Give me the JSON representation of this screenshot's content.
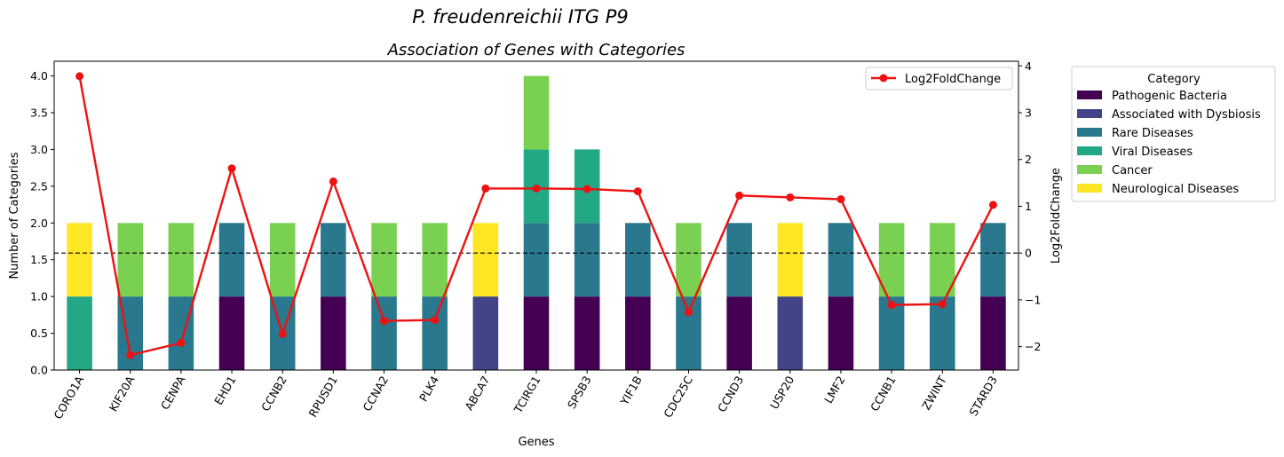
{
  "figure": {
    "suptitle": "P.  freudenreichii ITG P9"
  },
  "chart_data": {
    "type": "bar",
    "stacked": true,
    "title": "Association of Genes with Categories",
    "xlabel": "Genes",
    "ylabel": "Number of Categories",
    "y2label": "Log2FoldChange",
    "ylim": [
      0,
      4.2
    ],
    "y2lim": [
      -2.5,
      4.1
    ],
    "yticks": [
      "0.0",
      "0.5",
      "1.0",
      "1.5",
      "2.0",
      "2.5",
      "3.0",
      "3.5",
      "4.0"
    ],
    "y2ticks": [
      "−2",
      "−1",
      "0",
      "1",
      "2",
      "3",
      "4"
    ],
    "reference_line": {
      "axis": "y2",
      "value": 0,
      "style": "dashed"
    },
    "categories": [
      "CORO1A",
      "KIF20A",
      "CENPA",
      "EHD1",
      "CCNB2",
      "RPUSD1",
      "CCNA2",
      "PLK4",
      "ABCA7",
      "TCIRG1",
      "SPSB3",
      "YIF1B",
      "CDC25C",
      "CCND3",
      "USP20",
      "LMF2",
      "CCNB1",
      "ZWINT",
      "STARD3"
    ],
    "series": [
      {
        "name": "Pathogenic Bacteria",
        "color": "#440154",
        "values": [
          0,
          0,
          0,
          1,
          0,
          1,
          0,
          0,
          0,
          1,
          1,
          1,
          0,
          1,
          0,
          1,
          0,
          0,
          1
        ]
      },
      {
        "name": "Associated with Dysbiosis",
        "color": "#414487",
        "values": [
          0,
          0,
          0,
          0,
          0,
          0,
          0,
          0,
          1,
          0,
          0,
          0,
          0,
          0,
          1,
          0,
          0,
          0,
          0
        ]
      },
      {
        "name": "Rare Diseases",
        "color": "#2a788e",
        "values": [
          0,
          1,
          1,
          1,
          1,
          1,
          1,
          1,
          0,
          1,
          1,
          1,
          1,
          1,
          0,
          1,
          1,
          1,
          1
        ]
      },
      {
        "name": "Viral Diseases",
        "color": "#22a884",
        "values": [
          1,
          0,
          0,
          0,
          0,
          0,
          0,
          0,
          0,
          1,
          1,
          0,
          0,
          0,
          0,
          0,
          0,
          0,
          0
        ]
      },
      {
        "name": "Cancer",
        "color": "#7ad151",
        "values": [
          0,
          1,
          1,
          0,
          1,
          0,
          1,
          1,
          0,
          1,
          0,
          0,
          1,
          0,
          0,
          0,
          1,
          1,
          0
        ]
      },
      {
        "name": "Neurological Diseases",
        "color": "#fde725",
        "values": [
          1,
          0,
          0,
          0,
          0,
          0,
          0,
          0,
          1,
          0,
          0,
          0,
          0,
          0,
          1,
          0,
          0,
          0,
          0
        ]
      }
    ],
    "line": {
      "name": "Log2FoldChange",
      "color": "#ee1111",
      "axis": "y2",
      "values": [
        3.78,
        -2.18,
        -1.92,
        1.81,
        -1.73,
        1.53,
        -1.45,
        -1.43,
        1.38,
        1.38,
        1.37,
        1.32,
        -1.26,
        1.23,
        1.19,
        1.15,
        -1.11,
        -1.09,
        1.03
      ]
    },
    "legend": {
      "title": "Category",
      "placement": "outside-right"
    },
    "line_legend": {
      "placement": "top-right"
    }
  }
}
